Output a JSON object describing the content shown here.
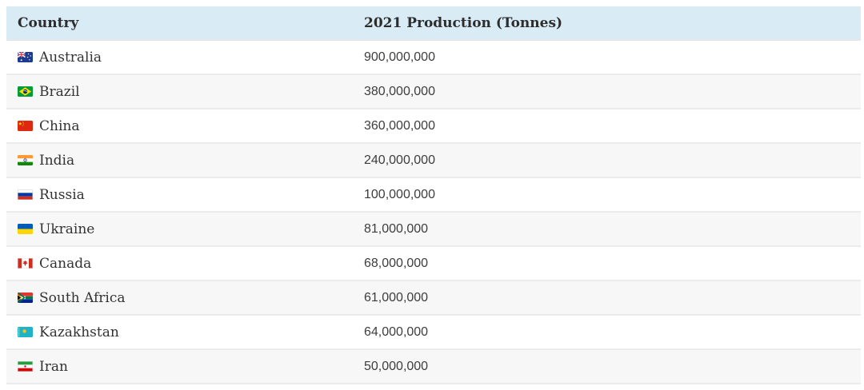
{
  "table": {
    "columns": [
      {
        "label": "Country"
      },
      {
        "label": "2021 Production (Tonnes)"
      }
    ],
    "rows": [
      {
        "country": "Australia",
        "flag_icon": "flag-australia-icon",
        "value": "900,000,000"
      },
      {
        "country": "Brazil",
        "flag_icon": "flag-brazil-icon",
        "value": "380,000,000"
      },
      {
        "country": "China",
        "flag_icon": "flag-china-icon",
        "value": "360,000,000"
      },
      {
        "country": "India",
        "flag_icon": "flag-india-icon",
        "value": "240,000,000"
      },
      {
        "country": "Russia",
        "flag_icon": "flag-russia-icon",
        "value": "100,000,000"
      },
      {
        "country": "Ukraine",
        "flag_icon": "flag-ukraine-icon",
        "value": "81,000,000"
      },
      {
        "country": "Canada",
        "flag_icon": "flag-canada-icon",
        "value": "68,000,000"
      },
      {
        "country": "South Africa",
        "flag_icon": "flag-south-africa-icon",
        "value": "61,000,000"
      },
      {
        "country": "Kazakhstan",
        "flag_icon": "flag-kazakhstan-icon",
        "value": "64,000,000"
      },
      {
        "country": "Iran",
        "flag_icon": "flag-iran-icon",
        "value": "50,000,000"
      }
    ],
    "colors": {
      "header_bg": "#d9ecf6",
      "row_alt_bg": "#f7f7f7",
      "row_border": "#ebebeb",
      "text": "#333333"
    }
  },
  "chart_data": {
    "type": "table",
    "title": "",
    "columns": [
      "Country",
      "2021 Production (Tonnes)"
    ],
    "categories": [
      "Australia",
      "Brazil",
      "China",
      "India",
      "Russia",
      "Ukraine",
      "Canada",
      "South Africa",
      "Kazakhstan",
      "Iran"
    ],
    "values": [
      900000000,
      380000000,
      360000000,
      240000000,
      100000000,
      81000000,
      68000000,
      61000000,
      64000000,
      50000000
    ],
    "legend": "off",
    "grid": "off"
  }
}
